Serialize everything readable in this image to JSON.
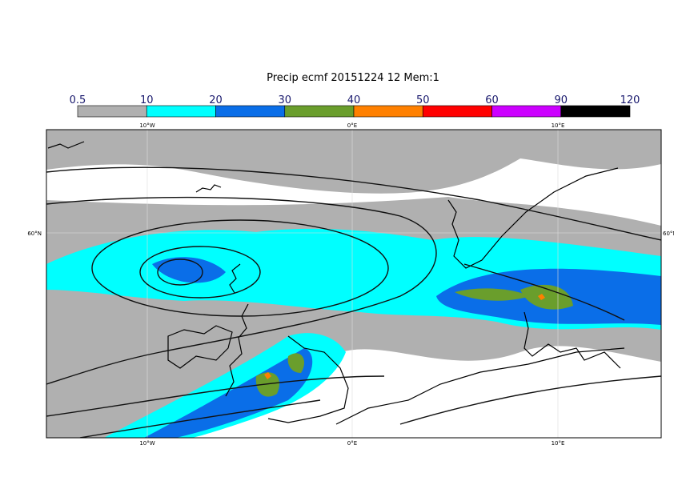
{
  "title": "Precip ecmf 20151224 12 Mem:1",
  "colorbar": {
    "levels": [
      0.5,
      10,
      20,
      30,
      40,
      50,
      60,
      90,
      120
    ],
    "colors": [
      "#b0b0b0",
      "#00ffff",
      "#0a6ee8",
      "#6a9e2c",
      "#ff8000",
      "#ff0000",
      "#cc00ff",
      "#000000"
    ]
  },
  "map": {
    "lon_labels": [
      "10°W",
      "0°E",
      "10°E"
    ],
    "lat_labels": [
      "60°N"
    ]
  }
}
